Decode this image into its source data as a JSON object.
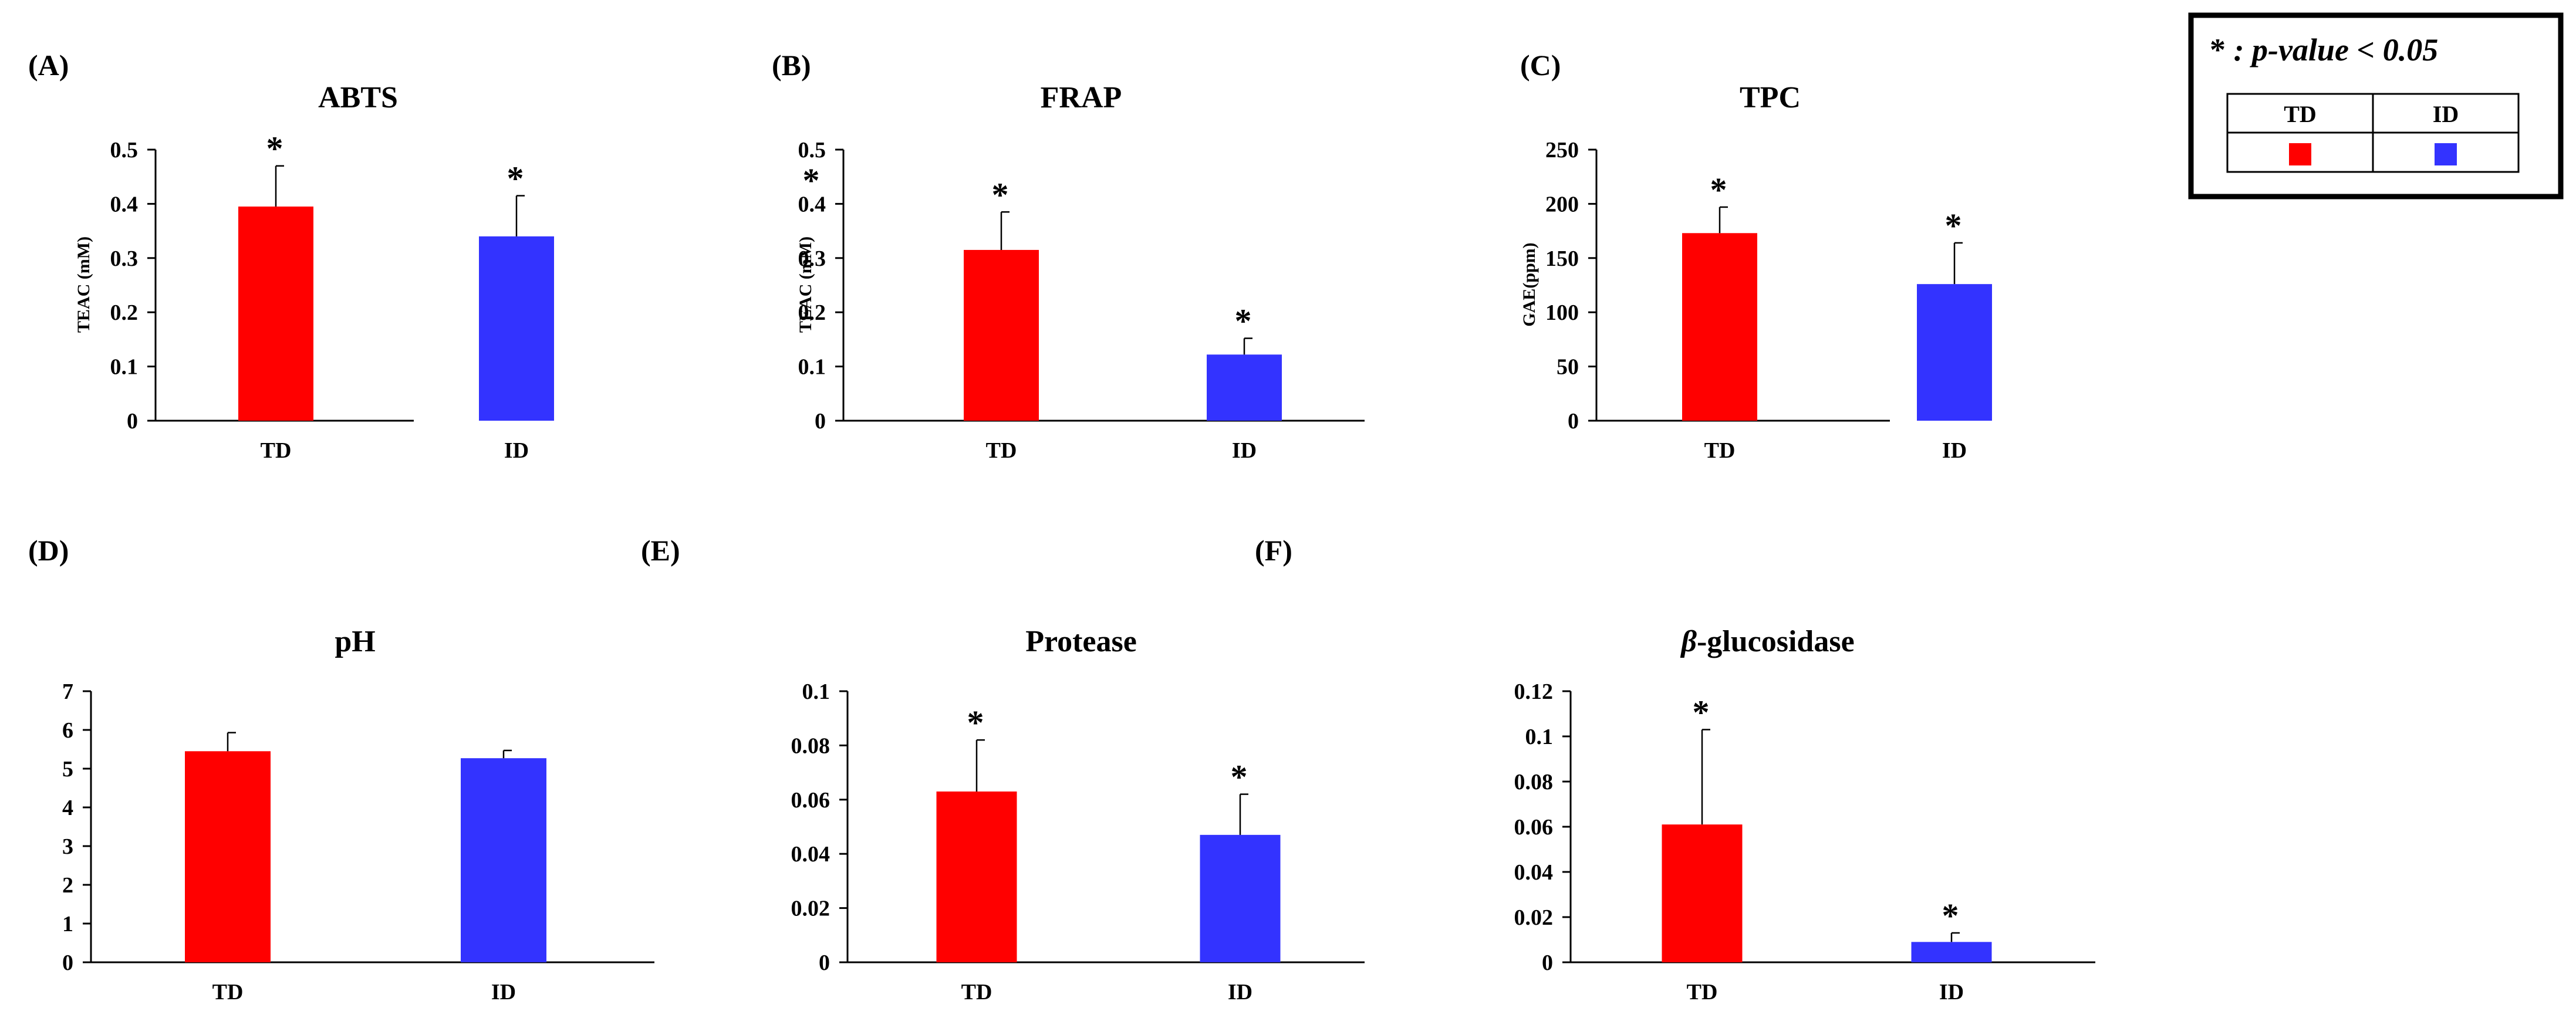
{
  "legend": {
    "note_star": "*",
    "note_text": " : p-value < 0.05",
    "headers": [
      "TD",
      "ID"
    ]
  },
  "colors": {
    "TD": "#FF0000",
    "ID": "#3333FF",
    "axis": "#000000"
  },
  "chart_data": [
    {
      "id": "abts",
      "panel_label": "(A)",
      "type": "bar",
      "title": "ABTS",
      "title_italic_prefix": "",
      "ylabel": "TEAC (mM)",
      "categories": [
        "TD",
        "ID"
      ],
      "values": [
        0.395,
        0.34
      ],
      "errors": [
        0.075,
        0.075
      ],
      "significance": [
        "*",
        "*"
      ],
      "ylim": [
        0,
        0.5
      ],
      "yticks": [
        "0",
        "0.1",
        "0.2",
        "0.3",
        "0.4",
        "0.5"
      ],
      "extra_marks": []
    },
    {
      "id": "frap",
      "panel_label": "(B)",
      "type": "bar",
      "title": "FRAP",
      "title_italic_prefix": "",
      "ylabel": "TEAC (mM)",
      "categories": [
        "TD",
        "ID"
      ],
      "values": [
        0.315,
        0.122
      ],
      "errors": [
        0.07,
        0.03
      ],
      "significance": [
        "*",
        "*"
      ],
      "ylim": [
        0,
        0.5
      ],
      "yticks": [
        "0",
        "0.1",
        "0.2",
        "0.3",
        "0.4",
        "0.5"
      ],
      "extra_marks": [
        "*"
      ]
    },
    {
      "id": "tpc",
      "panel_label": "(C)",
      "type": "bar",
      "title": "TPC",
      "title_italic_prefix": "",
      "ylabel": "GAE(ppm)",
      "categories": [
        "TD",
        "ID"
      ],
      "values": [
        173,
        126
      ],
      "errors": [
        24,
        38
      ],
      "significance": [
        "*",
        "*"
      ],
      "ylim": [
        0,
        250
      ],
      "yticks": [
        "0",
        "50",
        "100",
        "150",
        "200",
        "250"
      ],
      "extra_marks": []
    },
    {
      "id": "ph",
      "panel_label": "(D)",
      "type": "bar",
      "title": "pH",
      "title_italic_prefix": "",
      "ylabel": "",
      "categories": [
        "TD",
        "ID"
      ],
      "values": [
        5.45,
        5.27
      ],
      "errors": [
        0.48,
        0.2
      ],
      "significance": [
        "",
        ""
      ],
      "ylim": [
        0,
        7
      ],
      "yticks": [
        "0",
        "1",
        "2",
        "3",
        "4",
        "5",
        "6",
        "7"
      ],
      "extra_marks": []
    },
    {
      "id": "protease",
      "panel_label": "(E)",
      "type": "bar",
      "title": "Protease",
      "title_italic_prefix": "",
      "ylabel": "",
      "categories": [
        "TD",
        "ID"
      ],
      "values": [
        0.063,
        0.047
      ],
      "errors": [
        0.019,
        0.015
      ],
      "significance": [
        "*",
        "*"
      ],
      "ylim": [
        0,
        0.1
      ],
      "yticks": [
        "0",
        "0.02",
        "0.04",
        "0.06",
        "0.08",
        "0.1"
      ],
      "extra_marks": []
    },
    {
      "id": "glucosidase",
      "panel_label": "(F)",
      "type": "bar",
      "title": "-glucosidase",
      "title_italic_prefix": "β",
      "ylabel": "",
      "categories": [
        "TD",
        "ID"
      ],
      "values": [
        0.061,
        0.009
      ],
      "errors": [
        0.042,
        0.004
      ],
      "significance": [
        "*",
        "*"
      ],
      "ylim": [
        0,
        0.12
      ],
      "yticks": [
        "0",
        "0.02",
        "0.04",
        "0.06",
        "0.08",
        "0.1",
        "0.12"
      ],
      "extra_marks": []
    }
  ]
}
